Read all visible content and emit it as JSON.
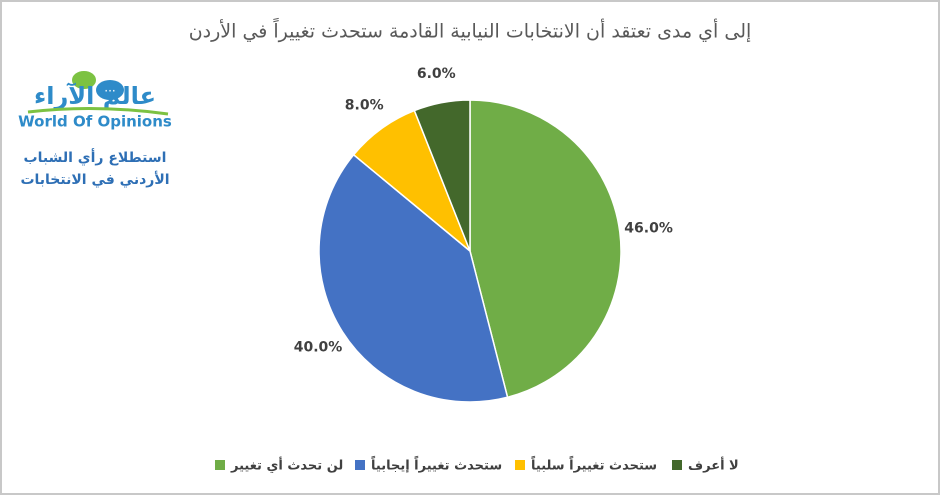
{
  "chart_data": {
    "type": "pie",
    "title": "إلى أي مدى تعتقد أن الانتخابات النيابية القادمة ستحدث تغييراً في الأردن",
    "categories": [
      "لن تحدث أي تغيير",
      "ستحدث تغييراً إيجابياً",
      "ستحدث تغييراً سلبياً",
      "لا أعرف"
    ],
    "values": [
      46,
      40,
      8,
      6
    ],
    "value_labels": [
      "46.0%",
      "40.0%",
      "8.0%",
      "6.0%"
    ],
    "colors": [
      "#70ad47",
      "#4472c4",
      "#ffc000",
      "#43682b"
    ],
    "legend": "bottom"
  },
  "logo": {
    "arabic_name": "عالم الآراء",
    "english_name": "World Of Opinions",
    "caption": [
      "استطلاع رأي الشباب",
      "الأردني في الانتخابات"
    ]
  }
}
